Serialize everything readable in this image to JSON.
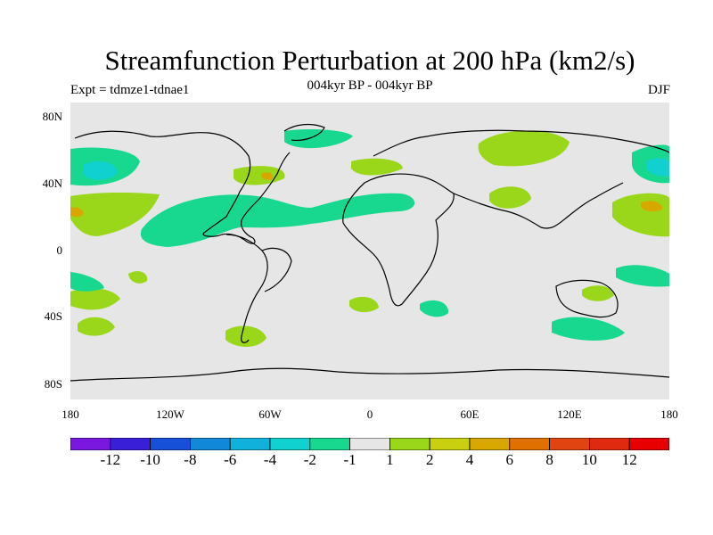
{
  "header": {
    "title": "Streamfunction Perturbation at 200 hPa (km2/s)",
    "subtitle": "004kyr BP - 004kyr BP",
    "left_label": "Expt = tdmze1-tdnae1",
    "right_label": "DJF"
  },
  "axes": {
    "lat_labels": [
      "80N",
      "40N",
      "0",
      "40S",
      "80S"
    ],
    "lon_labels": [
      "180",
      "120W",
      "60W",
      "0",
      "60E",
      "120E",
      "180"
    ]
  },
  "colorbar": {
    "labels": [
      "-12",
      "-10",
      "-8",
      "-6",
      "-4",
      "-2",
      "-1",
      "1",
      "2",
      "4",
      "6",
      "8",
      "10",
      "12"
    ],
    "colors": [
      "#7b18e0",
      "#3a1fd8",
      "#1650d8",
      "#1288d8",
      "#10b2dc",
      "#10d0d0",
      "#18d890",
      "#e6e6e6",
      "#9ad61a",
      "#c8d010",
      "#d8a800",
      "#e07000",
      "#e04410",
      "#e02a10",
      "#e80000"
    ]
  },
  "colors": {
    "background": "#e6e6e6",
    "neg1": "#18d890",
    "neg2": "#10d0d0",
    "neg3": "#10b2dc",
    "pos1": "#9ad61a",
    "pos2": "#c8d010",
    "pos3": "#d8a800",
    "pos4": "#e07000"
  }
}
